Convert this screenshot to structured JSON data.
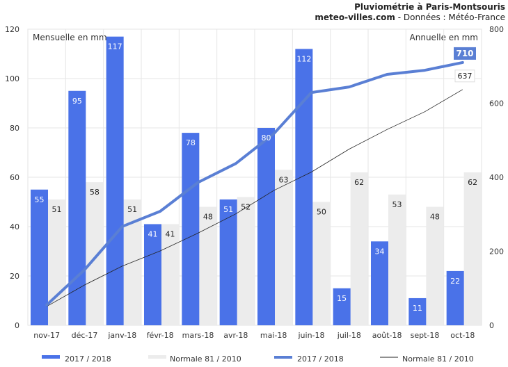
{
  "header": {
    "title": "Pluviométrie à Paris-Montsouris",
    "source_site": "meteo-villes.com",
    "source_rest": " - Données : Météo-France"
  },
  "chart_data": {
    "type": "bar",
    "categories": [
      "nov-17",
      "déc-17",
      "janv-18",
      "févr-18",
      "mars-18",
      "avr-18",
      "mai-18",
      "juin-18",
      "juil-18",
      "août-18",
      "sept-18",
      "oct-18"
    ],
    "series": [
      {
        "name": "2017 / 2018",
        "type": "bar",
        "axis": "left",
        "color": "#4a72e8",
        "values": [
          55,
          95,
          117,
          41,
          78,
          51,
          80,
          112,
          15,
          34,
          11,
          22
        ]
      },
      {
        "name": "Normale 81 / 2010",
        "type": "bar",
        "axis": "left",
        "color": "#ececec",
        "values": [
          51,
          58,
          51,
          41,
          48,
          52,
          63,
          50,
          62,
          53,
          48,
          62
        ]
      },
      {
        "name": "2017 / 2018",
        "type": "line",
        "axis": "right",
        "color": "#5a7fd4",
        "values": [
          55,
          150,
          267,
          308,
          386,
          437,
          517,
          629,
          644,
          678,
          689,
          710
        ]
      },
      {
        "name": "Normale 81 / 2010",
        "type": "line",
        "axis": "right",
        "color": "#222222",
        "values": [
          51,
          109,
          160,
          201,
          249,
          301,
          364,
          414,
          476,
          529,
          577,
          637
        ]
      }
    ],
    "left_axis": {
      "label": "Mensuelle en mm",
      "range": [
        0,
        120
      ],
      "ticks": [
        0,
        20,
        40,
        60,
        80,
        100,
        120
      ]
    },
    "right_axis": {
      "label": "Annuelle en mm",
      "range": [
        0,
        800
      ],
      "ticks": [
        0,
        200,
        400,
        600,
        800
      ]
    },
    "end_labels": {
      "line_2017": "710",
      "line_normal": "637"
    },
    "grid": true,
    "legend_position": "bottom"
  }
}
